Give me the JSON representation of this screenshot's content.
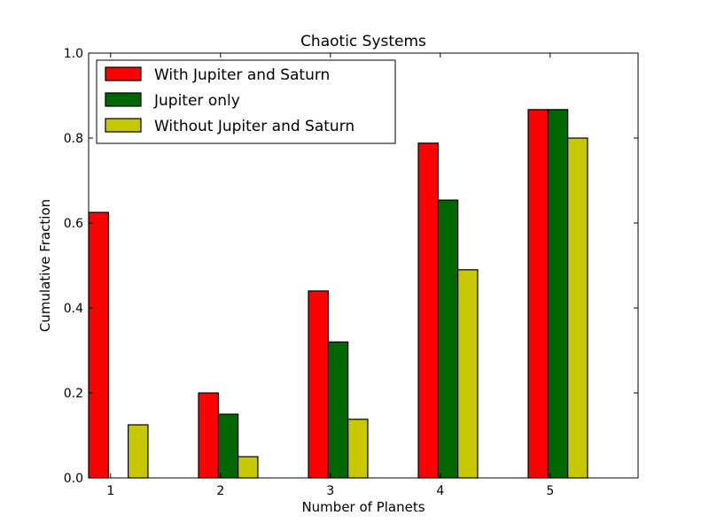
{
  "chart_data": {
    "type": "bar",
    "title": "Chaotic Systems",
    "xlabel": "Number of Planets",
    "ylabel": "Cumulative Fraction",
    "categories": [
      "1",
      "2",
      "3",
      "4",
      "5"
    ],
    "xlim": [
      0.8,
      5.8
    ],
    "ylim": [
      0.0,
      1.0
    ],
    "yticks": [
      "0.0",
      "0.2",
      "0.4",
      "0.6",
      "0.8",
      "1.0"
    ],
    "grid": false,
    "legend_position": "top-left",
    "series": [
      {
        "name": "With Jupiter and Saturn",
        "color": "#ff0000",
        "values": [
          0.625,
          0.2,
          0.44,
          0.788,
          0.867
        ]
      },
      {
        "name": "Jupiter only",
        "color": "#006600",
        "values": [
          0.0,
          0.15,
          0.32,
          0.654,
          0.867
        ]
      },
      {
        "name": "Without Jupiter and Saturn",
        "color": "#c8c800",
        "values": [
          0.125,
          0.05,
          0.138,
          0.49,
          0.8
        ]
      }
    ]
  }
}
